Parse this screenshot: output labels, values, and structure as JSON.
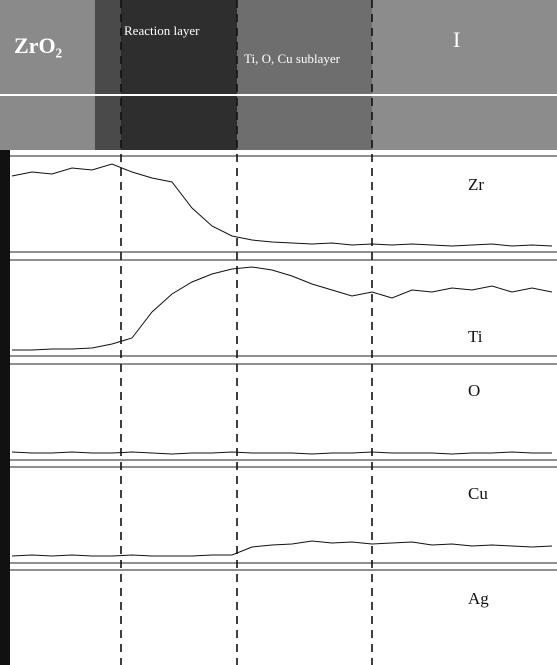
{
  "image": {
    "phase_label": "ZrO₂",
    "reaction_label": "Reaction layer",
    "sublayer_label": "Ti, O, Cu sublayer",
    "region_label": "I"
  },
  "profiles": [
    {
      "element": "Zr",
      "values": [
        72,
        76,
        74,
        80,
        78,
        84,
        76,
        70,
        66,
        40,
        22,
        12,
        8,
        6,
        5,
        4,
        5,
        3,
        4,
        3,
        4,
        3,
        2,
        3,
        4,
        2,
        3,
        2
      ]
    },
    {
      "element": "Ti",
      "values": [
        2,
        2,
        3,
        3,
        4,
        8,
        14,
        40,
        58,
        70,
        78,
        83,
        85,
        82,
        76,
        68,
        62,
        56,
        60,
        54,
        62,
        60,
        64,
        62,
        66,
        60,
        64,
        60
      ]
    },
    {
      "element": "O",
      "values": [
        4,
        3,
        3,
        4,
        3,
        3,
        4,
        3,
        2,
        3,
        3,
        4,
        3,
        3,
        3,
        2,
        3,
        3,
        4,
        3,
        3,
        3,
        2,
        3,
        3,
        4,
        3,
        3
      ]
    },
    {
      "element": "Cu",
      "values": [
        3,
        4,
        3,
        4,
        3,
        3,
        4,
        3,
        3,
        3,
        4,
        4,
        12,
        14,
        15,
        18,
        16,
        17,
        15,
        16,
        17,
        14,
        15,
        13,
        14,
        13,
        12,
        13
      ]
    },
    {
      "element": "Ag",
      "values": []
    }
  ]
}
